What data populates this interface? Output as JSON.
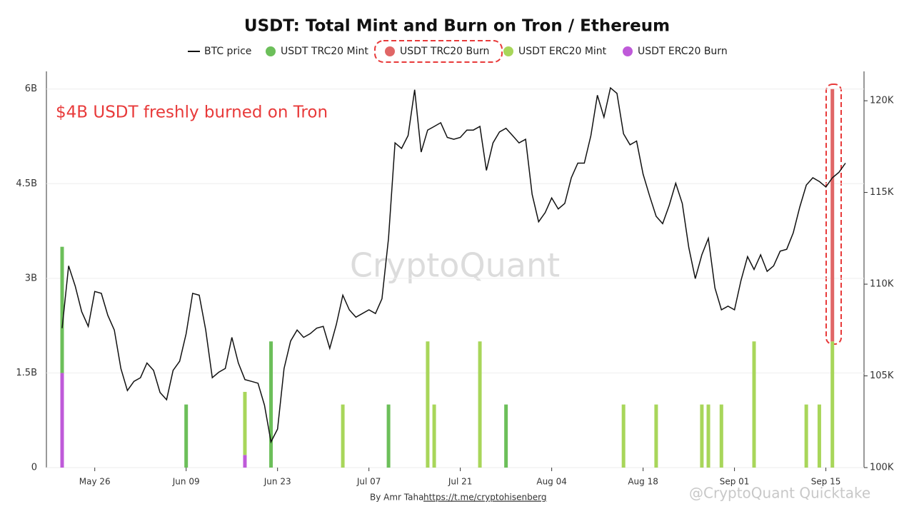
{
  "chart_data": {
    "type": "bar-line",
    "title": "USDT: Total Mint and Burn on Tron / Ethereum",
    "annotation": "$4B USDT freshly burned on Tron",
    "watermark": "CryptoQuant",
    "credit": "By Amr Taha",
    "credit_link": "https://t.me/cryptohisenberg",
    "overlay": "@CryptoQuant Quicktake",
    "categories": [
      null,
      null,
      null,
      null,
      null,
      "May 26",
      null,
      null,
      null,
      null,
      null,
      null,
      null,
      null,
      null,
      null,
      null,
      null,
      null,
      "Jun 09",
      null,
      null,
      null,
      null,
      null,
      null,
      null,
      null,
      null,
      null,
      null,
      null,
      null,
      "Jun 23",
      null,
      null,
      null,
      null,
      null,
      null,
      null,
      null,
      null,
      null,
      null,
      null,
      null,
      "Jul 07",
      null,
      null,
      null,
      null,
      null,
      null,
      null,
      null,
      null,
      null,
      null,
      null,
      null,
      "Jul 21",
      null,
      null,
      null,
      null,
      null,
      null,
      null,
      null,
      null,
      null,
      null,
      null,
      null,
      "Aug 04",
      null,
      null,
      null,
      null,
      null,
      null,
      null,
      null,
      null,
      null,
      null,
      null,
      null,
      "Aug 18",
      null,
      null,
      null,
      null,
      null,
      null,
      null,
      null,
      null,
      null,
      null,
      null,
      null,
      "Sep 01",
      null,
      null,
      null,
      null,
      null,
      null,
      null,
      null,
      null,
      null,
      null,
      null,
      null,
      "Sep 15",
      null,
      null,
      null
    ],
    "series": [
      {
        "name": "BTC price",
        "type": "line",
        "axis": "y2",
        "color": "#111111",
        "values": [
          107.6,
          111.0,
          109.9,
          108.5,
          107.7,
          109.6,
          109.5,
          108.3,
          107.5,
          105.4,
          104.2,
          104.7,
          104.9,
          105.7,
          105.3,
          104.1,
          103.7,
          105.3,
          105.8,
          107.3,
          109.5,
          109.4,
          107.5,
          104.9,
          105.2,
          105.4,
          107.1,
          105.7,
          104.8,
          104.7,
          104.6,
          103.4,
          101.4,
          102.1,
          105.4,
          106.9,
          107.5,
          107.1,
          107.3,
          107.6,
          107.7,
          106.5,
          107.8,
          109.4,
          108.6,
          108.2,
          108.4,
          108.6,
          108.4,
          109.2,
          112.5,
          117.7,
          117.4,
          118.1,
          120.6,
          117.2,
          118.4,
          118.6,
          118.8,
          118.0,
          117.9,
          118.0,
          118.4,
          118.4,
          118.6,
          116.2,
          117.7,
          118.3,
          118.5,
          118.1,
          117.7,
          117.9,
          114.9,
          113.4,
          113.9,
          114.7,
          114.1,
          114.4,
          115.8,
          116.6,
          116.6,
          118.1,
          120.3,
          119.1,
          120.7,
          120.4,
          118.2,
          117.6,
          117.8,
          116.0,
          114.8,
          113.7,
          113.3,
          114.3,
          115.5,
          114.4,
          112.0,
          110.3,
          111.6,
          112.5,
          109.8,
          108.6,
          108.8,
          108.6,
          110.2,
          111.5,
          110.8,
          111.6,
          110.7,
          111.0,
          111.8,
          111.9,
          112.8,
          114.2,
          115.4,
          115.8,
          115.6,
          115.3,
          115.8,
          116.1,
          116.6
        ]
      },
      {
        "name": "USDT TRC20 Mint",
        "type": "bar",
        "color": "#6cbf5a",
        "values": [
          2.0,
          null,
          null,
          null,
          null,
          null,
          null,
          null,
          null,
          null,
          null,
          null,
          null,
          null,
          null,
          null,
          null,
          null,
          null,
          1.0,
          null,
          null,
          null,
          null,
          null,
          null,
          null,
          null,
          null,
          null,
          null,
          null,
          2.0,
          null,
          null,
          null,
          null,
          null,
          null,
          null,
          null,
          null,
          null,
          null,
          null,
          null,
          null,
          null,
          null,
          null,
          1.0,
          null,
          null,
          null,
          null,
          null,
          null,
          null,
          null,
          null,
          null,
          null,
          null,
          null,
          null,
          null,
          null,
          null,
          1.0,
          null,
          null,
          null,
          null,
          null,
          null,
          null,
          null,
          null,
          null,
          null,
          null,
          null,
          null,
          null,
          null,
          null,
          null,
          null,
          null,
          null,
          null,
          null,
          null,
          null,
          null,
          null,
          null,
          null,
          null,
          null,
          null,
          null,
          null,
          null,
          null,
          null,
          null,
          null,
          null,
          null,
          null,
          null,
          null,
          null,
          null,
          null,
          null,
          null,
          null,
          null,
          null
        ]
      },
      {
        "name": "USDT TRC20 Burn",
        "type": "bar",
        "color": "#e06666",
        "values": [
          null,
          null,
          null,
          null,
          null,
          null,
          null,
          null,
          null,
          null,
          null,
          null,
          null,
          null,
          null,
          null,
          null,
          null,
          null,
          null,
          null,
          null,
          null,
          null,
          null,
          null,
          null,
          null,
          null,
          null,
          null,
          null,
          null,
          null,
          null,
          null,
          null,
          null,
          null,
          null,
          null,
          null,
          null,
          null,
          null,
          null,
          null,
          null,
          null,
          null,
          null,
          null,
          null,
          null,
          null,
          null,
          null,
          null,
          null,
          null,
          null,
          null,
          null,
          null,
          null,
          null,
          null,
          null,
          null,
          null,
          null,
          null,
          null,
          null,
          null,
          null,
          null,
          null,
          null,
          null,
          null,
          null,
          null,
          null,
          null,
          null,
          null,
          null,
          null,
          null,
          null,
          null,
          null,
          null,
          null,
          null,
          null,
          null,
          null,
          null,
          null,
          null,
          null,
          null,
          null,
          null,
          null,
          null,
          null,
          null,
          null,
          null,
          null,
          null,
          null,
          null,
          null,
          null,
          4.0,
          null,
          null
        ]
      },
      {
        "name": "USDT ERC20 Mint",
        "type": "bar",
        "color": "#a8d65a",
        "values": [
          null,
          null,
          null,
          null,
          null,
          null,
          null,
          null,
          null,
          null,
          null,
          null,
          null,
          null,
          null,
          null,
          null,
          null,
          null,
          null,
          null,
          null,
          null,
          null,
          null,
          null,
          null,
          null,
          1.0,
          null,
          null,
          null,
          null,
          null,
          null,
          null,
          null,
          null,
          null,
          null,
          null,
          null,
          null,
          1.0,
          null,
          null,
          null,
          null,
          null,
          null,
          null,
          null,
          null,
          null,
          null,
          null,
          2.0,
          1.0,
          null,
          null,
          null,
          null,
          null,
          null,
          2.0,
          null,
          null,
          null,
          null,
          null,
          null,
          null,
          null,
          null,
          null,
          null,
          null,
          null,
          null,
          null,
          null,
          null,
          null,
          null,
          null,
          null,
          1.0,
          null,
          null,
          null,
          null,
          1.0,
          null,
          null,
          null,
          null,
          null,
          null,
          1.0,
          1.0,
          null,
          1.0,
          null,
          null,
          null,
          null,
          2.0,
          null,
          null,
          null,
          null,
          null,
          null,
          null,
          1.0,
          null,
          1.0,
          null,
          2.0,
          null,
          null
        ]
      },
      {
        "name": "USDT ERC20 Burn",
        "type": "bar",
        "color": "#bf5ad9",
        "values": [
          1.5,
          null,
          null,
          null,
          null,
          null,
          null,
          null,
          null,
          null,
          null,
          null,
          null,
          null,
          null,
          null,
          null,
          null,
          null,
          null,
          null,
          null,
          null,
          null,
          null,
          null,
          null,
          null,
          0.2,
          null,
          null,
          null,
          null,
          null,
          null,
          null,
          null,
          null,
          null,
          null,
          null,
          null,
          null,
          null,
          null,
          null,
          null,
          null,
          null,
          null,
          null,
          null,
          null,
          null,
          null,
          null,
          null,
          null,
          null,
          null,
          null,
          null,
          null,
          null,
          null,
          null,
          null,
          null,
          null,
          null,
          null,
          null,
          null,
          null,
          null,
          null,
          null,
          null,
          null,
          null,
          null,
          null,
          null,
          null,
          null,
          null,
          null,
          null,
          null,
          null,
          null,
          null,
          null,
          null,
          null,
          null,
          null,
          null,
          null,
          null,
          null,
          null,
          null,
          null,
          null,
          null,
          null,
          null,
          null,
          null,
          null,
          null,
          null,
          null,
          null,
          null,
          null,
          null,
          null,
          null,
          null
        ]
      }
    ],
    "ylim": [
      0,
      6.28
    ],
    "yticks": [
      0,
      {
        "value": 1.5,
        "label": "1.5B"
      },
      {
        "value": 3,
        "label": "3B"
      },
      {
        "value": 4.5,
        "label": "4.5B"
      },
      {
        "value": 6,
        "label": "6B"
      }
    ],
    "y2lim": [
      100,
      121.6
    ],
    "y2ticks": [
      {
        "value": 100,
        "label": "100K"
      },
      {
        "value": 105,
        "label": "105K"
      },
      {
        "value": 110,
        "label": "110K"
      },
      {
        "value": 115,
        "label": "115K"
      },
      {
        "value": 120,
        "label": "120K"
      }
    ],
    "grid": true
  }
}
